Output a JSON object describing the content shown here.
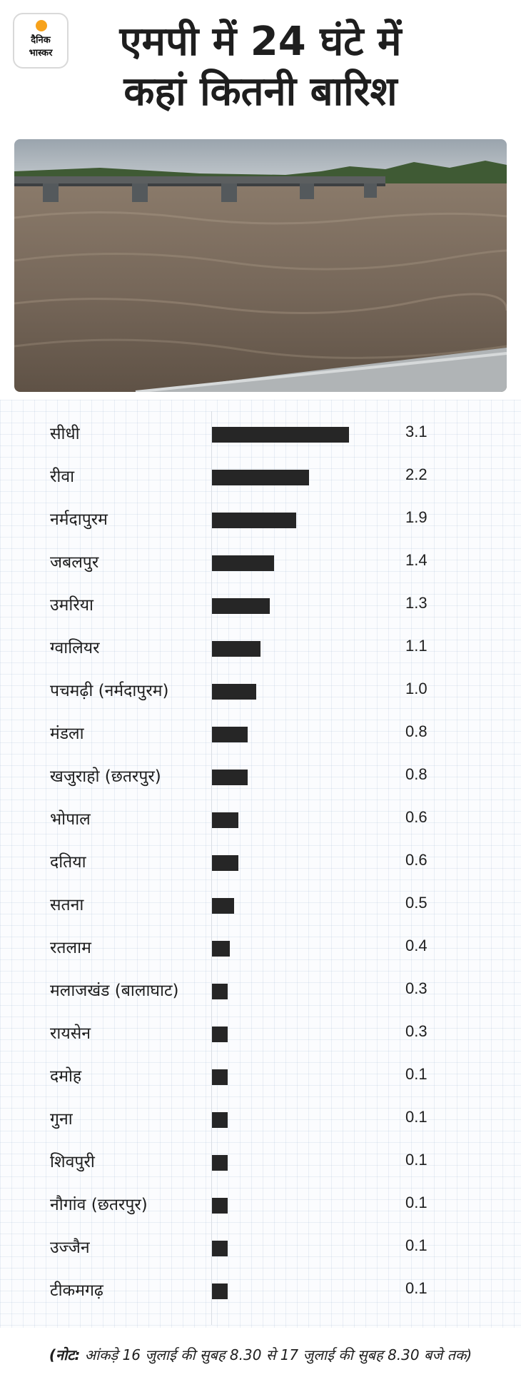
{
  "logo": {
    "line1": "दैनिक",
    "line2": "भास्कर",
    "sun_color": "#f7a21b"
  },
  "header": {
    "title_line1": "एमपी में 24 घंटे में",
    "title_line2": "कहां कितनी बारिश"
  },
  "chart_data": {
    "type": "bar",
    "orientation": "horizontal",
    "title": "एमपी में 24 घंटे में कहां कितनी बारिश",
    "categories": [
      "सीधी",
      "रीवा",
      "नर्मदापुरम",
      "जबलपुर",
      "उमरिया",
      "ग्वालियर",
      "पचमढ़ी (नर्मदापुरम)",
      "मंडला",
      "खजुराहो (छतरपुर)",
      "भोपाल",
      "दतिया",
      "सतना",
      "रतलाम",
      "मलाजखंड (बालाघाट)",
      "रायसेन",
      "दमोह",
      "गुना",
      "शिवपुरी",
      "नौगांव (छतरपुर)",
      "उज्जैन",
      "टीकमगढ़"
    ],
    "values": [
      3.1,
      2.2,
      1.9,
      1.4,
      1.3,
      1.1,
      1.0,
      0.8,
      0.8,
      0.6,
      0.6,
      0.5,
      0.4,
      0.3,
      0.3,
      0.1,
      0.1,
      0.1,
      0.1,
      0.1,
      0.1
    ],
    "value_labels": [
      "3.1",
      "2.2",
      "1.9",
      "1.4",
      "1.3",
      "1.1",
      "1.0",
      "0.8",
      "0.8",
      "0.6",
      "0.6",
      "0.5",
      "0.4",
      "0.3",
      "0.3",
      "0.1",
      "0.1",
      "0.1",
      "0.1",
      "0.1",
      "0.1"
    ],
    "bar_color": "#262626",
    "grid": true,
    "legend": "none"
  },
  "note": {
    "prefix": "(नोट:",
    "text": " आंकड़े 16 जुलाई की सुबह 8.30 से 17 जुलाई की सुबह 8.30 बजे तक)"
  }
}
